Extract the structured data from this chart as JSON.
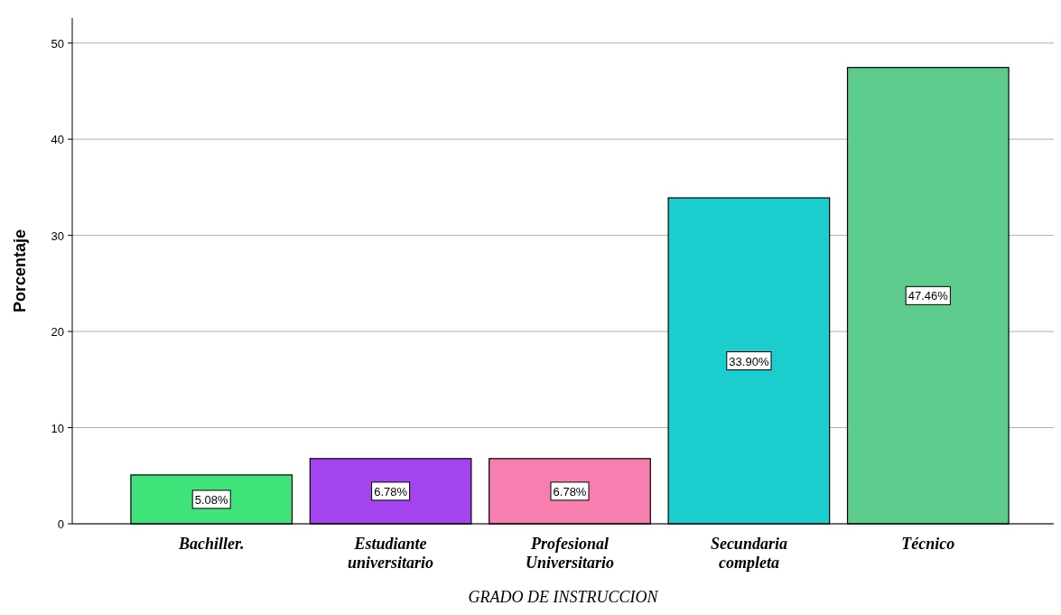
{
  "chart_data": {
    "type": "bar",
    "xlabel": "GRADO DE INSTRUCCION",
    "ylabel": "Porcentaje",
    "categories": [
      "Bachiller.",
      "Estudiante universitario",
      "Profesional Universitario",
      "Secundaria completa",
      "Técnico"
    ],
    "values": [
      5.08,
      6.78,
      6.78,
      33.9,
      47.46
    ],
    "colors": [
      "#40e27a",
      "#a444ee",
      "#f77fb0",
      "#1ccdcd",
      "#5ccb8c"
    ],
    "value_labels": [
      "5.08%",
      "6.78%",
      "6.78%",
      "33.90%",
      "47.46%"
    ],
    "ylim": [
      0,
      52.6
    ],
    "yticks": [
      0,
      10,
      20,
      30,
      40,
      50
    ],
    "grid": "y"
  }
}
